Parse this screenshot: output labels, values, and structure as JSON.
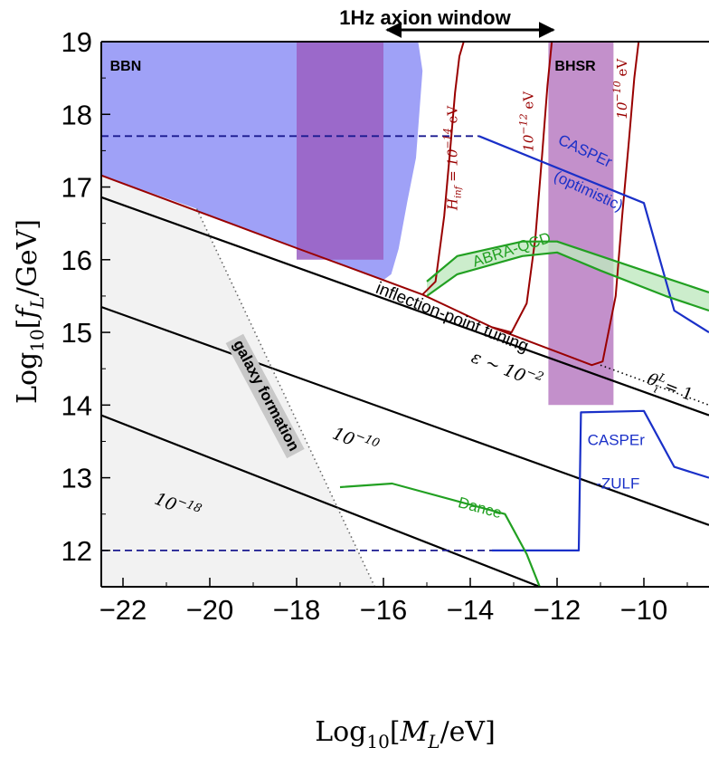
{
  "chart_data": {
    "type": "line",
    "title": "1Hz axion window",
    "xlabel": "Log10[ML/eV]",
    "ylabel": "Log10[fL/GeV]",
    "xlim": [
      -22.5,
      -8.5
    ],
    "ylim": [
      11.5,
      19
    ],
    "x_ticks": [
      "−22",
      "−20",
      "−18",
      "−16",
      "−14",
      "−12",
      "−10"
    ],
    "y_ticks": [
      "12",
      "13",
      "14",
      "15",
      "16",
      "17",
      "18",
      "19"
    ],
    "x_tick_values": [
      -22,
      -20,
      -18,
      -16,
      -14,
      -12,
      -10
    ],
    "y_tick_values": [
      12,
      13,
      14,
      15,
      16,
      17,
      18,
      19
    ],
    "window_arrow": [
      -16,
      -12
    ],
    "grid": false,
    "regions": [
      {
        "name": "BBN",
        "label": "BBN",
        "color": "#9a9cf7",
        "outline": [
          [
            -22.5,
            19
          ],
          [
            -15.2,
            19
          ],
          [
            -15.1,
            18.6
          ],
          [
            -15.25,
            17.4
          ],
          [
            -15.45,
            16.8
          ],
          [
            -15.65,
            16.15
          ],
          [
            -15.82,
            15.8
          ],
          [
            -16,
            15.72
          ],
          [
            -22.5,
            17.16
          ]
        ]
      },
      {
        "name": "BHSR",
        "label": "BHSR",
        "color": "#c08ac8",
        "outline": [
          [
            -12.2,
            19
          ],
          [
            -10.7,
            19
          ],
          [
            -10.7,
            14
          ],
          [
            -12.2,
            14
          ]
        ]
      },
      {
        "name": "window-band",
        "label": "",
        "color": "#9a5fc2",
        "outline": [
          [
            -18,
            19
          ],
          [
            -16,
            19
          ],
          [
            -16,
            16
          ],
          [
            -18,
            16
          ]
        ]
      },
      {
        "name": "galaxy formation",
        "label": "galaxy formation",
        "color": "#f2f2f2",
        "outline": [
          [
            -22.5,
            17.16
          ],
          [
            -22.5,
            11.5
          ],
          [
            -16.2,
            11.5
          ],
          [
            -20.3,
            16.7
          ]
        ]
      }
    ],
    "series": [
      {
        "name": "10^{-14} eV",
        "color": "#990000",
        "group": "Hinf",
        "x": [
          -22.5,
          -18,
          -16,
          -15.1,
          -14.8,
          -14.6,
          -14.45,
          -14.35,
          -14.25,
          -14.15
        ],
        "y": [
          17.16,
          16.16,
          15.72,
          15.52,
          15.7,
          16.6,
          17.6,
          18.3,
          18.8,
          19
        ]
      },
      {
        "name": "10^{-12} eV",
        "color": "#990000",
        "group": "Hinf",
        "x": [
          -15.1,
          -13.5,
          -13.05,
          -12.7,
          -12.5,
          -12.35,
          -12.22,
          -12.12
        ],
        "y": [
          15.52,
          15.07,
          15.0,
          15.4,
          16.3,
          17.4,
          18.4,
          19
        ]
      },
      {
        "name": "10^{-10} eV",
        "color": "#990000",
        "group": "Hinf",
        "x": [
          -13.5,
          -11.2,
          -10.95,
          -10.65,
          -10.5,
          -10.35,
          -10.22,
          -10.12
        ],
        "y": [
          15.07,
          14.55,
          14.6,
          15.5,
          16.6,
          17.6,
          18.5,
          19
        ]
      },
      {
        "name": "inflection-point tuning ε ~ 10^{-2}",
        "color": "#000000",
        "x": [
          -22.5,
          -8.5
        ],
        "y": [
          16.86,
          13.86
        ]
      },
      {
        "name": "10^{-10}",
        "color": "#000000",
        "x": [
          -22.5,
          -8.5
        ],
        "y": [
          15.35,
          12.35
        ]
      },
      {
        "name": "10^{-18}",
        "color": "#000000",
        "x": [
          -22.5,
          -12.4
        ],
        "y": [
          13.86,
          11.5
        ]
      },
      {
        "name": "θi^L = 1",
        "color": "#000000",
        "dash": "dotted",
        "x": [
          -11,
          -8.5
        ],
        "y": [
          14.55,
          14.0
        ]
      },
      {
        "name": "galaxy formation edge",
        "color": "#666666",
        "dash": "dotted",
        "x": [
          -20.3,
          -16.2
        ],
        "y": [
          16.7,
          11.5
        ]
      },
      {
        "name": "CASPEr (optimistic)",
        "color": "#1a30c8",
        "x": [
          -13.8,
          -10,
          -9.3,
          -8.5
        ],
        "y": [
          17.7,
          16.78,
          15.3,
          15.0
        ]
      },
      {
        "name": "CASPEr reach (dashed)",
        "color": "#1a1a90",
        "dash": "dashed",
        "x": [
          -22.5,
          -13.8
        ],
        "y": [
          17.7,
          17.7
        ]
      },
      {
        "name": "CASPEr-ZULF",
        "color": "#1a30c8",
        "x": [
          -13.5,
          -11.5,
          -11.5,
          -11.45,
          -10,
          -9.3,
          -8.5
        ],
        "y": [
          12.0,
          12.0,
          12.0,
          13.9,
          13.92,
          13.15,
          13.0
        ]
      },
      {
        "name": "CASPEr-ZULF reach (dashed)",
        "color": "#1a1a90",
        "dash": "dashed",
        "x": [
          -22.5,
          -13.5
        ],
        "y": [
          12.0,
          12.0
        ]
      },
      {
        "name": "Dance",
        "color": "#22a022",
        "x": [
          -17,
          -15.8,
          -13.2,
          -12.7,
          -12.4
        ],
        "y": [
          12.87,
          12.92,
          12.5,
          11.95,
          11.5
        ]
      },
      {
        "name": "ABRA-QCD upper",
        "color": "#22a022",
        "x": [
          -15,
          -14.3,
          -12.8,
          -12,
          -11,
          -9.5,
          -8.5
        ],
        "y": [
          15.7,
          16.05,
          16.25,
          16.25,
          16.05,
          15.75,
          15.55
        ]
      },
      {
        "name": "ABRA-QCD lower",
        "color": "#22a022",
        "x": [
          -15,
          -14.3,
          -12.8,
          -12,
          -11,
          -9.5,
          -8.5
        ],
        "y": [
          15.5,
          15.8,
          16.05,
          16.1,
          15.85,
          15.5,
          15.3
        ]
      }
    ],
    "annotations": [
      {
        "text": "inflection-point tuning",
        "x": -16.2,
        "y": 15.55,
        "color": "#000000"
      },
      {
        "text": "ε ~ 10",
        "sup": "−2",
        "x": -14.0,
        "y": 14.6,
        "color": "#000000"
      },
      {
        "text": "10",
        "sup": "−10",
        "x": -17.2,
        "y": 13.55,
        "color": "#000000"
      },
      {
        "text": "10",
        "sup": "−18",
        "x": -21.3,
        "y": 12.65,
        "color": "#000000"
      },
      {
        "text": "galaxy formation",
        "x": -18.8,
        "y": 14.1,
        "color": "#000000"
      },
      {
        "text": "CASPEr",
        "x": -12.0,
        "y": 17.6,
        "color": "#1a30c8"
      },
      {
        "text": "(optimistic)",
        "x": -12.1,
        "y": 17.1,
        "color": "#1a30c8"
      },
      {
        "text": "ABRA-QCD",
        "x": -13.9,
        "y": 15.9,
        "color": "#22a022"
      },
      {
        "text": "CASPEr",
        "x": -11.3,
        "y": 13.45,
        "color": "#1a30c8"
      },
      {
        "text": "-ZULF",
        "x": -11.1,
        "y": 12.85,
        "color": "#1a30c8"
      },
      {
        "text": "Dance",
        "x": -14.3,
        "y": 12.6,
        "color": "#22a022"
      },
      {
        "text": "H",
        "sub": "inf",
        "rest": " = 10",
        "sup": "−14",
        "unit": " eV",
        "x": -14.3,
        "y": 17.4,
        "color": "#990000"
      },
      {
        "text": "10",
        "sup": "−12",
        "unit": " eV",
        "x": -12.55,
        "y": 17.9,
        "color": "#990000"
      },
      {
        "text": "10",
        "sup": "−10",
        "unit": " eV",
        "x": -10.4,
        "y": 18.35,
        "color": "#990000"
      },
      {
        "text": "θ",
        "sup": "L",
        "sub": "i",
        "rest": " = 1",
        "x": -9.95,
        "y": 14.3,
        "color": "#000000"
      }
    ]
  }
}
